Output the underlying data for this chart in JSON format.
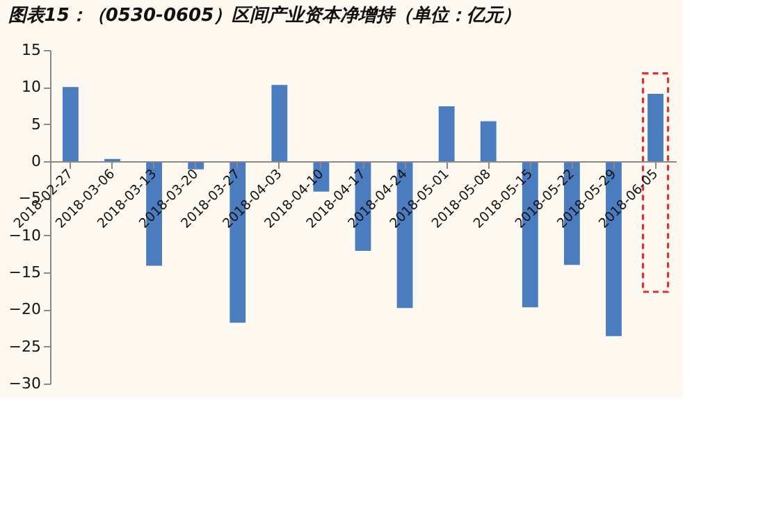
{
  "chart_data": {
    "type": "bar",
    "title": "图表15：（0530-0605）区间产业资本净增持（单位：亿元）",
    "categories": [
      "2018-02-27",
      "2018-03-06",
      "2018-03-13",
      "2018-03-20",
      "2018-03-27",
      "2018-04-03",
      "2018-04-10",
      "2018-04-17",
      "2018-04-24",
      "2018-05-01",
      "2018-05-08",
      "2018-05-15",
      "2018-05-22",
      "2018-05-29",
      "2018-06-05"
    ],
    "values": [
      10.0,
      0.3,
      -14.1,
      -1.1,
      -21.8,
      10.3,
      -4.1,
      -12.1,
      -19.8,
      7.4,
      5.4,
      -19.7,
      -14.0,
      -23.6,
      9.1
    ],
    "color": "#4a7cbf",
    "ylim": [
      -30,
      15
    ],
    "yticks": [
      -30,
      -25,
      -20,
      -15,
      -10,
      -5,
      0,
      5,
      10,
      15
    ],
    "grid": false
  }
}
